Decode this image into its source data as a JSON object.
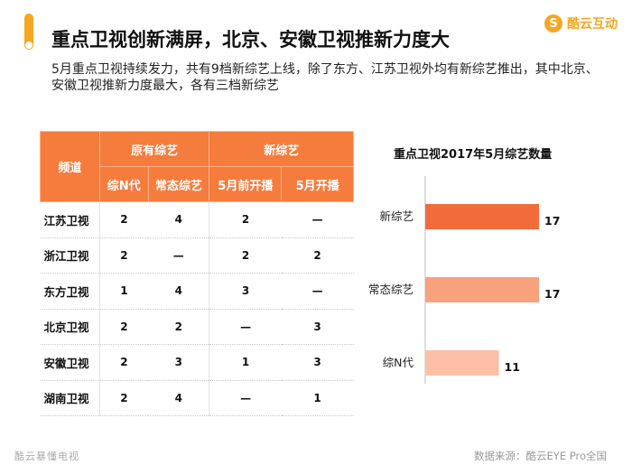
{
  "header": {
    "title": "重点卫视创新满屏，北京、安徽卫视推新力度大",
    "logo_text": "酷云互动",
    "logo_icon": "cloud-s-icon"
  },
  "subtitle": "5月重点卫视持续发力，共有9档新综艺上线，除了东方、江苏卫视外均有新综艺推出，其中北京、安徽卫视推新力度最大，各有三档新综艺",
  "table": {
    "channel_header": "频道",
    "group_headers": [
      "原有综艺",
      "新综艺"
    ],
    "sub_headers": [
      "综N代",
      "常态综艺",
      "5月前开播",
      "5月开播"
    ],
    "rows": [
      {
        "channel": "江苏卫视",
        "values": [
          "2",
          "4",
          "2",
          "—"
        ]
      },
      {
        "channel": "浙江卫视",
        "values": [
          "2",
          "—",
          "2",
          "2"
        ]
      },
      {
        "channel": "东方卫视",
        "values": [
          "1",
          "4",
          "3",
          "—"
        ]
      },
      {
        "channel": "北京卫视",
        "values": [
          "2",
          "2",
          "—",
          "3"
        ]
      },
      {
        "channel": "安徽卫视",
        "values": [
          "2",
          "3",
          "1",
          "3"
        ]
      },
      {
        "channel": "湖南卫视",
        "values": [
          "2",
          "4",
          "—",
          "1"
        ]
      }
    ]
  },
  "chart_data": {
    "type": "bar",
    "orientation": "horizontal",
    "title": "重点卫视2017年5月综艺数量",
    "categories": [
      "新综艺",
      "常态综艺",
      "综N代"
    ],
    "values": [
      17,
      17,
      11
    ],
    "xlim": [
      0,
      17
    ],
    "colors": [
      "#f26b3a",
      "#f9a07c",
      "#fbc0a5"
    ],
    "grid": false,
    "legend": "none"
  },
  "footer": {
    "left": "酷云暴懂电视",
    "right": "数据来源：酷云EYE Pro全国"
  }
}
